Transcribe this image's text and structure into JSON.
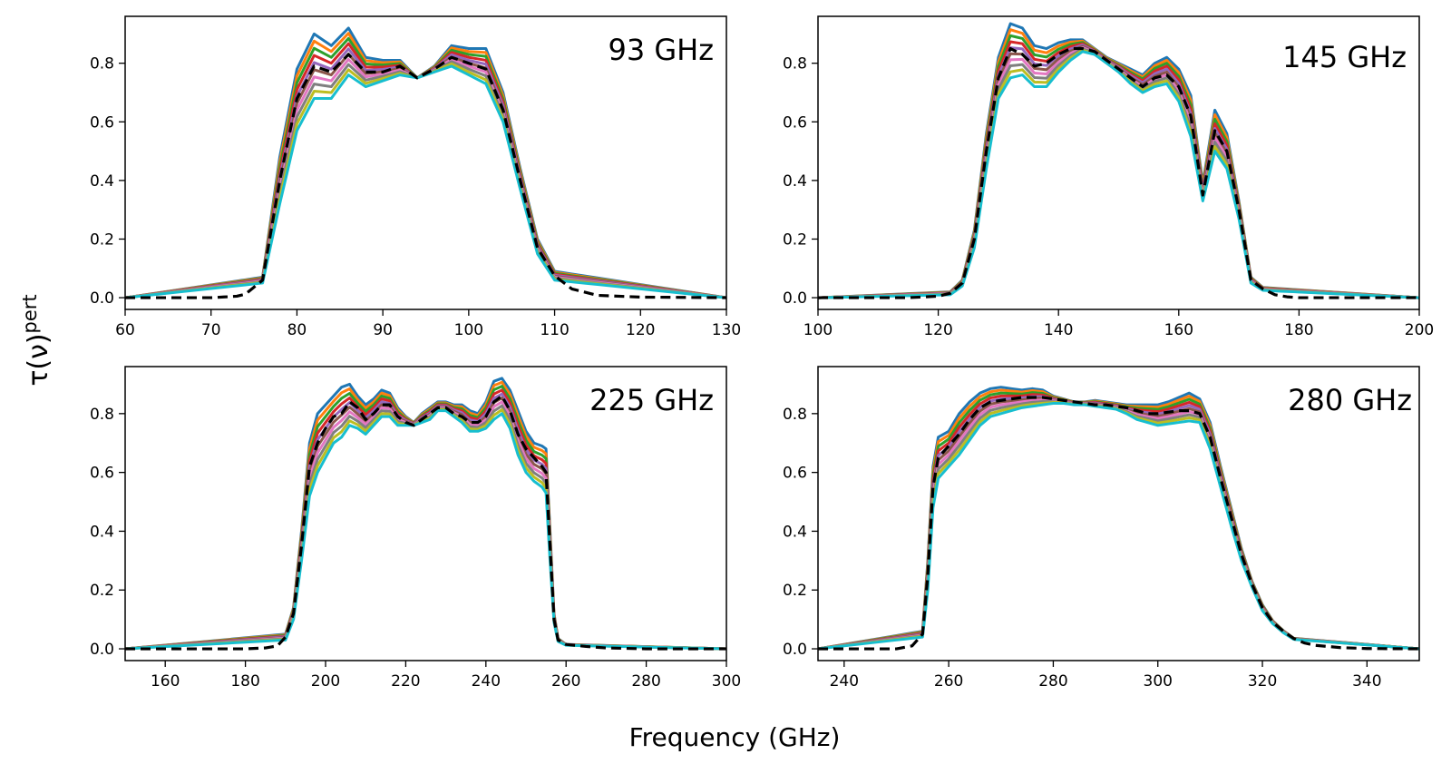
{
  "figure": {
    "ylabel_main": "τ(ν)",
    "ylabel_sup": "pert",
    "xlabel": "Frequency (GHz)"
  },
  "style": {
    "perturbation_colors": [
      "#1f77b4",
      "#ff7f0e",
      "#2ca02c",
      "#d62728",
      "#9467bd",
      "#8c564b",
      "#e377c2",
      "#7f7f7f",
      "#bcbd22",
      "#17becf"
    ],
    "mean_color": "#000000"
  },
  "chart_data": [
    {
      "type": "line",
      "title": "93 GHz",
      "xlim": [
        60,
        130
      ],
      "ylim": [
        -0.04,
        0.96
      ],
      "xticks": [
        60,
        70,
        80,
        90,
        100,
        110,
        120,
        130
      ],
      "yticks": [
        0.0,
        0.2,
        0.4,
        0.6,
        0.8
      ],
      "n_perturbations": 10,
      "mean_curve": {
        "x": [
          60,
          70,
          73,
          74,
          76,
          78,
          80,
          82,
          84,
          86,
          88,
          90,
          92,
          94,
          96,
          98,
          100,
          102,
          104,
          106,
          108,
          110,
          112,
          115,
          120,
          130
        ],
        "y": [
          0.0,
          0.0,
          0.005,
          0.012,
          0.06,
          0.4,
          0.68,
          0.79,
          0.77,
          0.83,
          0.77,
          0.77,
          0.79,
          0.75,
          0.78,
          0.82,
          0.8,
          0.78,
          0.64,
          0.4,
          0.17,
          0.075,
          0.03,
          0.008,
          0.002,
          0.0
        ]
      },
      "perturbation_spread": {
        "x": [
          60,
          76,
          78,
          80,
          82,
          84,
          86,
          88,
          90,
          92,
          94,
          96,
          98,
          100,
          102,
          104,
          106,
          108,
          110,
          130
        ],
        "y_high": [
          0.0,
          0.07,
          0.48,
          0.78,
          0.9,
          0.86,
          0.92,
          0.82,
          0.81,
          0.81,
          0.75,
          0.79,
          0.86,
          0.85,
          0.85,
          0.7,
          0.44,
          0.2,
          0.09,
          0.0
        ],
        "y_low": [
          0.0,
          0.05,
          0.32,
          0.57,
          0.68,
          0.68,
          0.76,
          0.72,
          0.74,
          0.76,
          0.75,
          0.77,
          0.79,
          0.76,
          0.73,
          0.6,
          0.37,
          0.15,
          0.06,
          0.0
        ]
      }
    },
    {
      "type": "line",
      "title": "145 GHz",
      "xlim": [
        100,
        200
      ],
      "ylim": [
        -0.04,
        0.96
      ],
      "xticks": [
        100,
        120,
        140,
        160,
        180,
        200
      ],
      "yticks": [
        0.0,
        0.2,
        0.4,
        0.6,
        0.8
      ],
      "n_perturbations": 10,
      "mean_curve": {
        "x": [
          100,
          115,
          120,
          122,
          124,
          126,
          128,
          130,
          132,
          134,
          136,
          138,
          140,
          142,
          144,
          146,
          148,
          150,
          152,
          154,
          156,
          158,
          160,
          162,
          164,
          166,
          168,
          170,
          172,
          174,
          176,
          178,
          180,
          200
        ],
        "y": [
          0.0,
          0.0,
          0.005,
          0.015,
          0.05,
          0.2,
          0.5,
          0.75,
          0.85,
          0.83,
          0.79,
          0.8,
          0.83,
          0.85,
          0.85,
          0.84,
          0.81,
          0.78,
          0.75,
          0.72,
          0.75,
          0.76,
          0.72,
          0.62,
          0.35,
          0.57,
          0.5,
          0.3,
          0.06,
          0.03,
          0.01,
          0.003,
          0.0,
          0.0
        ]
      },
      "perturbation_spread": {
        "x": [
          100,
          122,
          124,
          126,
          128,
          130,
          132,
          134,
          136,
          138,
          140,
          142,
          144,
          146,
          148,
          150,
          152,
          154,
          156,
          158,
          160,
          162,
          164,
          166,
          168,
          170,
          172,
          174,
          200
        ],
        "y_high": [
          0.0,
          0.02,
          0.06,
          0.23,
          0.56,
          0.82,
          0.935,
          0.92,
          0.86,
          0.85,
          0.87,
          0.88,
          0.88,
          0.85,
          0.82,
          0.8,
          0.78,
          0.76,
          0.8,
          0.82,
          0.78,
          0.69,
          0.39,
          0.64,
          0.56,
          0.33,
          0.07,
          0.035,
          0.0
        ],
        "y_low": [
          0.0,
          0.01,
          0.04,
          0.17,
          0.44,
          0.68,
          0.75,
          0.76,
          0.72,
          0.72,
          0.77,
          0.81,
          0.84,
          0.83,
          0.8,
          0.77,
          0.73,
          0.7,
          0.72,
          0.73,
          0.67,
          0.55,
          0.33,
          0.5,
          0.44,
          0.27,
          0.05,
          0.025,
          0.0
        ]
      }
    },
    {
      "type": "line",
      "title": "225 GHz",
      "xlim": [
        150,
        300
      ],
      "ylim": [
        -0.04,
        0.96
      ],
      "xticks": [
        160,
        180,
        200,
        220,
        240,
        260,
        280,
        300
      ],
      "yticks": [
        0.0,
        0.2,
        0.4,
        0.6,
        0.8
      ],
      "n_perturbations": 10,
      "mean_curve": {
        "x": [
          150,
          180,
          185,
          188,
          190,
          192,
          194,
          196,
          198,
          200,
          202,
          204,
          206,
          208,
          210,
          212,
          214,
          216,
          218,
          220,
          222,
          224,
          226,
          228,
          230,
          232,
          234,
          236,
          238,
          240,
          242,
          244,
          246,
          248,
          250,
          252,
          254,
          255,
          256,
          257,
          258,
          260,
          265,
          270,
          280,
          300
        ],
        "y": [
          0.0,
          0.0,
          0.003,
          0.01,
          0.04,
          0.12,
          0.35,
          0.62,
          0.7,
          0.75,
          0.79,
          0.8,
          0.84,
          0.82,
          0.78,
          0.8,
          0.83,
          0.83,
          0.79,
          0.77,
          0.76,
          0.78,
          0.8,
          0.82,
          0.82,
          0.8,
          0.79,
          0.77,
          0.77,
          0.79,
          0.84,
          0.86,
          0.81,
          0.73,
          0.68,
          0.65,
          0.62,
          0.6,
          0.35,
          0.1,
          0.03,
          0.015,
          0.008,
          0.003,
          0.0,
          0.0
        ]
      },
      "perturbation_spread": {
        "x": [
          150,
          190,
          192,
          194,
          196,
          198,
          200,
          202,
          204,
          206,
          208,
          210,
          212,
          214,
          216,
          218,
          220,
          222,
          224,
          226,
          228,
          230,
          232,
          234,
          236,
          238,
          240,
          242,
          244,
          246,
          248,
          250,
          252,
          254,
          255,
          256,
          257,
          258,
          260,
          300
        ],
        "y_high": [
          0.0,
          0.05,
          0.14,
          0.4,
          0.7,
          0.8,
          0.83,
          0.86,
          0.89,
          0.9,
          0.86,
          0.83,
          0.85,
          0.88,
          0.87,
          0.82,
          0.79,
          0.77,
          0.8,
          0.82,
          0.84,
          0.84,
          0.83,
          0.83,
          0.81,
          0.8,
          0.84,
          0.91,
          0.92,
          0.88,
          0.81,
          0.74,
          0.7,
          0.69,
          0.68,
          0.4,
          0.12,
          0.035,
          0.015,
          0.0
        ],
        "y_low": [
          0.0,
          0.03,
          0.1,
          0.3,
          0.52,
          0.6,
          0.65,
          0.7,
          0.72,
          0.76,
          0.75,
          0.73,
          0.76,
          0.79,
          0.79,
          0.76,
          0.76,
          0.76,
          0.77,
          0.78,
          0.81,
          0.81,
          0.79,
          0.77,
          0.74,
          0.74,
          0.75,
          0.78,
          0.8,
          0.75,
          0.66,
          0.6,
          0.57,
          0.55,
          0.53,
          0.3,
          0.09,
          0.025,
          0.012,
          0.0
        ]
      }
    },
    {
      "type": "line",
      "title": "280 GHz",
      "xlim": [
        235,
        350
      ],
      "ylim": [
        -0.04,
        0.96
      ],
      "xticks": [
        240,
        260,
        280,
        300,
        320,
        340
      ],
      "yticks": [
        0.0,
        0.2,
        0.4,
        0.6,
        0.8
      ],
      "n_perturbations": 10,
      "mean_curve": {
        "x": [
          235,
          250,
          253,
          255,
          256,
          257,
          258,
          260,
          262,
          264,
          266,
          268,
          270,
          272,
          274,
          276,
          278,
          280,
          282,
          284,
          286,
          288,
          290,
          292,
          294,
          296,
          298,
          300,
          302,
          304,
          306,
          308,
          310,
          312,
          314,
          316,
          318,
          320,
          322,
          324,
          326,
          328,
          330,
          335,
          340,
          350
        ],
        "y": [
          0.0,
          0.0,
          0.01,
          0.05,
          0.25,
          0.55,
          0.65,
          0.69,
          0.73,
          0.78,
          0.82,
          0.84,
          0.845,
          0.85,
          0.855,
          0.855,
          0.855,
          0.85,
          0.845,
          0.84,
          0.835,
          0.83,
          0.83,
          0.825,
          0.82,
          0.81,
          0.8,
          0.8,
          0.805,
          0.81,
          0.81,
          0.8,
          0.72,
          0.58,
          0.45,
          0.32,
          0.22,
          0.14,
          0.09,
          0.06,
          0.035,
          0.02,
          0.012,
          0.004,
          0.001,
          0.0
        ]
      },
      "perturbation_spread": {
        "x": [
          235,
          255,
          256,
          257,
          258,
          260,
          262,
          264,
          266,
          268,
          270,
          272,
          274,
          276,
          278,
          280,
          282,
          284,
          286,
          288,
          290,
          292,
          294,
          296,
          298,
          300,
          302,
          304,
          306,
          308,
          310,
          312,
          314,
          316,
          318,
          320,
          322,
          324,
          326,
          350
        ],
        "y_high": [
          0.0,
          0.06,
          0.3,
          0.62,
          0.72,
          0.74,
          0.8,
          0.84,
          0.87,
          0.885,
          0.89,
          0.885,
          0.88,
          0.885,
          0.88,
          0.86,
          0.85,
          0.84,
          0.84,
          0.845,
          0.84,
          0.835,
          0.83,
          0.83,
          0.83,
          0.83,
          0.84,
          0.855,
          0.87,
          0.85,
          0.77,
          0.62,
          0.48,
          0.34,
          0.23,
          0.15,
          0.095,
          0.062,
          0.036,
          0.0
        ],
        "y_low": [
          0.0,
          0.04,
          0.2,
          0.48,
          0.58,
          0.62,
          0.66,
          0.71,
          0.76,
          0.79,
          0.8,
          0.81,
          0.82,
          0.825,
          0.83,
          0.835,
          0.835,
          0.83,
          0.83,
          0.825,
          0.82,
          0.815,
          0.8,
          0.78,
          0.77,
          0.76,
          0.765,
          0.77,
          0.775,
          0.77,
          0.68,
          0.55,
          0.42,
          0.3,
          0.21,
          0.13,
          0.085,
          0.055,
          0.032,
          0.0
        ]
      }
    }
  ]
}
